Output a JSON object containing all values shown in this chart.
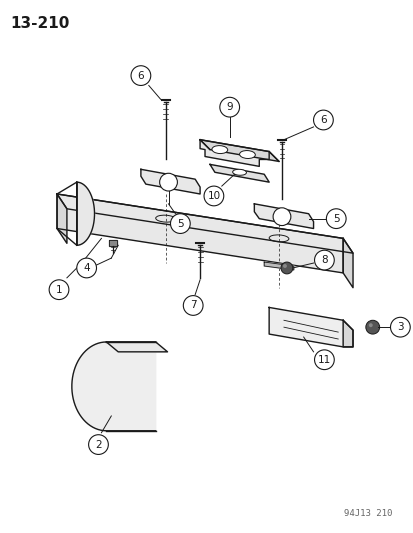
{
  "title": "13-210",
  "footnote": "94J13 210",
  "bg_color": "#ffffff",
  "line_color": "#1a1a1a",
  "title_fontsize": 11,
  "footnote_fontsize": 6.5,
  "label_fontsize": 7.5
}
